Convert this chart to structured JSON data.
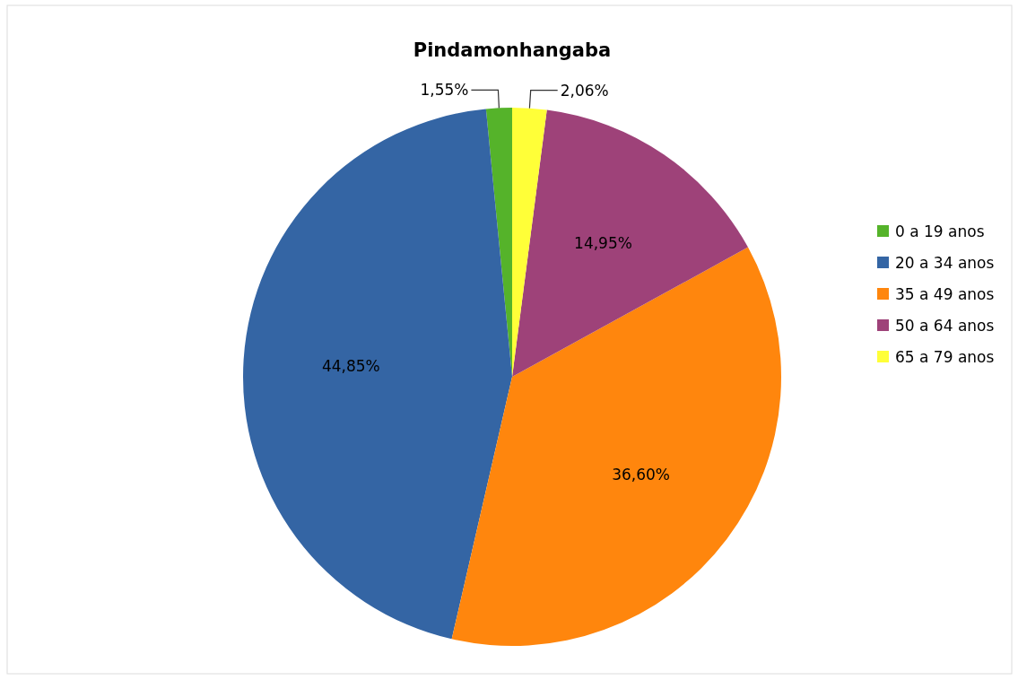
{
  "chart_data": {
    "type": "pie",
    "title": "Pindamonhangaba",
    "categories": [
      "0 a 19 anos",
      "20 a 34 anos",
      "35 a 49 anos",
      "50 a 64 anos",
      "65 a 79 anos"
    ],
    "values": [
      1.55,
      44.85,
      36.6,
      14.95,
      2.06
    ],
    "value_labels": [
      "1,55%",
      "44,85%",
      "36,60%",
      "14,95%",
      "2,06%"
    ],
    "colors": [
      "#55b32a",
      "#3465a4",
      "#ff860d",
      "#9e4279",
      "#ffff38"
    ],
    "legend": "right"
  }
}
